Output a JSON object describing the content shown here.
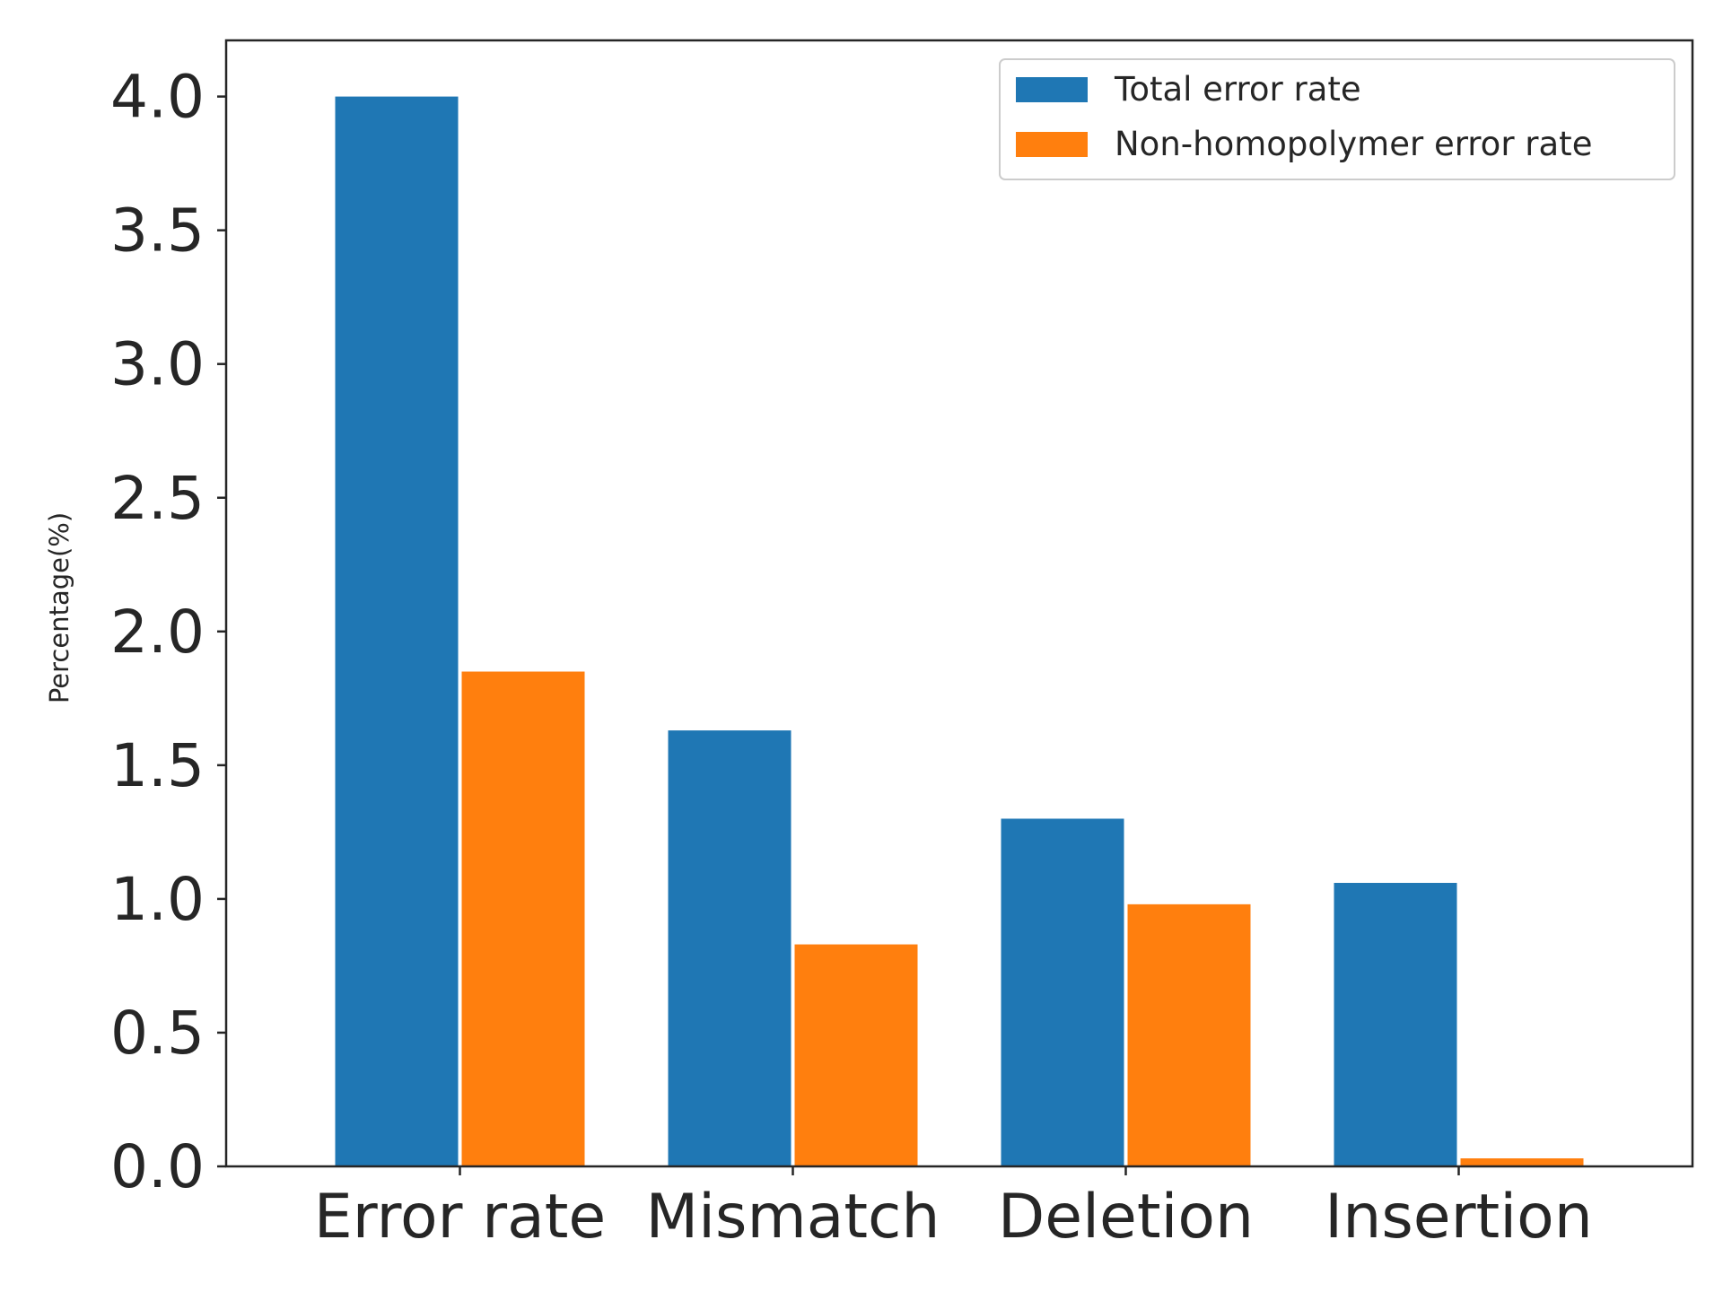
{
  "chart_data": {
    "type": "bar",
    "title": "",
    "xlabel": "",
    "ylabel": "Percentage(%)",
    "categories": [
      "Error rate",
      "Mismatch",
      "Deletion",
      "Insertion"
    ],
    "series": [
      {
        "name": "Total error rate",
        "color": "#1f77b4",
        "values": [
          4.0,
          1.63,
          1.3,
          1.06
        ]
      },
      {
        "name": "Non-homopolymer error rate",
        "color": "#ff7f0e",
        "values": [
          1.85,
          0.83,
          0.98,
          0.03
        ]
      }
    ],
    "ylim": [
      0,
      4.21
    ],
    "yticks": [
      "0.0",
      "0.5",
      "1.0",
      "1.5",
      "2.0",
      "2.5",
      "3.0",
      "3.5",
      "4.0"
    ],
    "grid": false,
    "legend_position": "top-right"
  }
}
